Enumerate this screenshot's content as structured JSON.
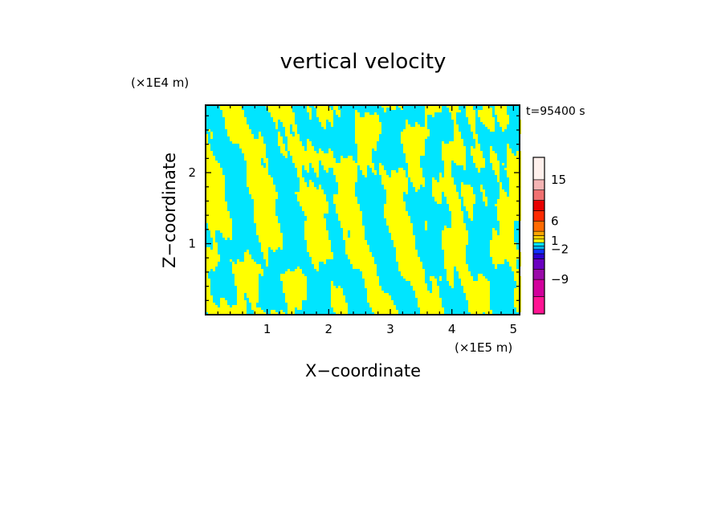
{
  "chart_data": {
    "type": "heatmap",
    "title": "vertical velocity",
    "xlabel": "X−coordinate",
    "ylabel": "Z−coordinate",
    "x_unit": "(×1E5 m)",
    "y_unit": "(×1E4 m)",
    "time_label": "t=95400 s",
    "xlim": [
      0.0,
      5.1
    ],
    "ylim": [
      0.0,
      2.95
    ],
    "x_ticks": [
      {
        "value": 1,
        "label": "1"
      },
      {
        "value": 2,
        "label": "2"
      },
      {
        "value": 3,
        "label": "3"
      },
      {
        "value": 4,
        "label": "4"
      },
      {
        "value": 5,
        "label": "5"
      }
    ],
    "y_ticks": [
      {
        "value": 1,
        "label": "1"
      },
      {
        "value": 2,
        "label": "2"
      }
    ],
    "colorbar": {
      "tick_labels": [
        {
          "level": 15,
          "label": "15"
        },
        {
          "level": 6,
          "label": "6"
        },
        {
          "level": 1,
          "label": "1"
        },
        {
          "level": -2,
          "label": "−2"
        },
        {
          "level": -9,
          "label": "−9"
        }
      ],
      "bands": [
        {
          "color": "#ff1493"
        },
        {
          "color": "#d1009b"
        },
        {
          "color": "#9a0aa8"
        },
        {
          "color": "#6a00c0"
        },
        {
          "color": "#2b00d1"
        },
        {
          "color": "#1030ff"
        },
        {
          "color": "#00b4ff"
        },
        {
          "color": "#00e5ff"
        },
        {
          "color": "#ffff00"
        },
        {
          "color": "#ffd000"
        },
        {
          "color": "#ffa500"
        },
        {
          "color": "#ff6a00"
        },
        {
          "color": "#ff2a00"
        },
        {
          "color": "#e80000"
        },
        {
          "color": "#f07070"
        },
        {
          "color": "#f4b4b4"
        },
        {
          "color": "#fff0ec"
        }
      ]
    },
    "field_colors": {
      "positive": "#ffff00",
      "negative": "#00e5ff",
      "strong_negative": "#2b3fd8"
    }
  }
}
